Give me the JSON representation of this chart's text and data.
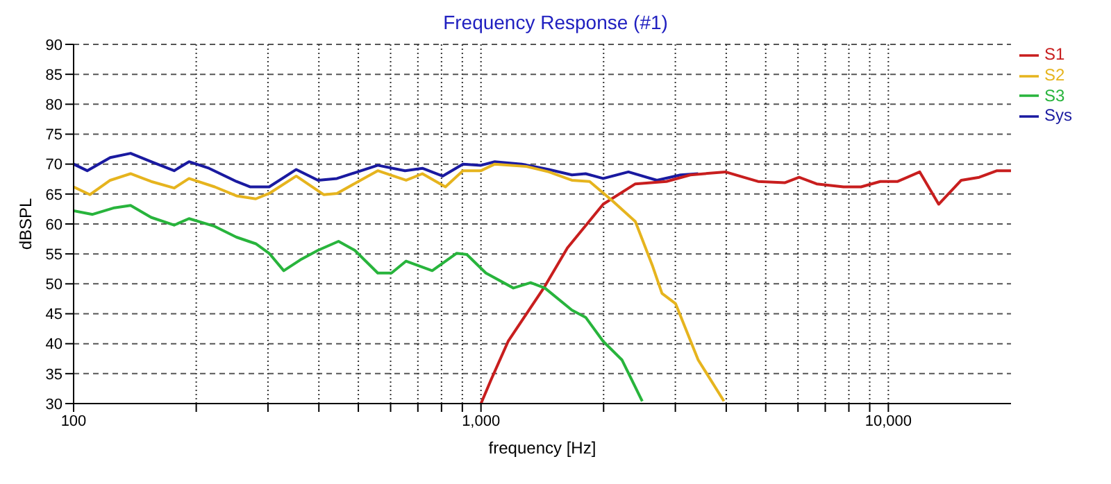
{
  "chart_data": {
    "type": "line",
    "title": "Frequency Response (#1)",
    "xlabel": "frequency [Hz]",
    "ylabel": "dBSPL",
    "log": "x",
    "grid": true,
    "legend": "top right",
    "marker": "none",
    "line_style": "solid",
    "xlim": [
      100,
      20000
    ],
    "ylim": [
      30,
      90
    ],
    "xticks": [
      100,
      {
        "value": 200,
        "label": null
      },
      {
        "value": 300,
        "label": null
      },
      {
        "value": 400,
        "label": null
      },
      {
        "value": 500,
        "label": null
      },
      {
        "value": 600,
        "label": null
      },
      {
        "value": 700,
        "label": null
      },
      {
        "value": 800,
        "label": null
      },
      {
        "value": 900,
        "label": null
      },
      {
        "value": 1000,
        "label": "1,000"
      },
      {
        "value": 2000,
        "label": null
      },
      {
        "value": 3000,
        "label": null
      },
      {
        "value": 4000,
        "label": null
      },
      {
        "value": 5000,
        "label": null
      },
      {
        "value": 6000,
        "label": null
      },
      {
        "value": 7000,
        "label": null
      },
      {
        "value": 8000,
        "label": null
      },
      {
        "value": 9000,
        "label": null
      },
      {
        "value": 10000,
        "label": "10,000"
      }
    ],
    "yticks": [
      30,
      35,
      40,
      45,
      50,
      55,
      60,
      65,
      70,
      75,
      80,
      85,
      90
    ],
    "series": [
      {
        "name": "Sys",
        "color": "#1a1aa0",
        "x": [
          100,
          108,
          123,
          138,
          155,
          176.5,
          192,
          215,
          251,
          271,
          302,
          352,
          398,
          443,
          558,
          651,
          718,
          805,
          903,
          1000,
          1081,
          1259,
          1468,
          1672,
          1807,
          1995,
          2301,
          2704,
          3090,
          3413
        ],
        "values": [
          70.0,
          68.9,
          71.1,
          71.8,
          70.4,
          68.9,
          70.4,
          69.3,
          67.1,
          66.2,
          66.2,
          69.1,
          67.3,
          67.6,
          69.8,
          68.9,
          69.3,
          68.0,
          70.0,
          69.8,
          70.4,
          70.0,
          69.1,
          68.2,
          68.4,
          67.6,
          68.7,
          67.3,
          68.2,
          68.4
        ]
      },
      {
        "name": "S1",
        "color": "#c81e1e",
        "x": [
          1000,
          1059,
          1166,
          1435,
          1630,
          1995,
          2393,
          2852,
          3266,
          3981,
          4786,
          5578,
          6039,
          6668,
          7762,
          8570,
          9550,
          10540,
          11940,
          13290,
          15100,
          16710,
          18480,
          20000
        ],
        "values": [
          30,
          34,
          40.4,
          49.6,
          56.0,
          63.3,
          66.7,
          67.1,
          68.2,
          68.7,
          67.1,
          66.9,
          67.8,
          66.7,
          66.2,
          66.2,
          67.1,
          67.1,
          68.7,
          63.3,
          67.3,
          67.8,
          68.9,
          68.9
        ]
      },
      {
        "name": "S2",
        "color": "#e6b41e",
        "x": [
          100,
          109.7,
          123,
          138,
          155,
          176.5,
          192,
          222,
          251,
          280,
          302,
          352,
          411,
          443,
          558,
          655,
          718,
          818,
          903,
          1000,
          1081,
          1294,
          1468,
          1672,
          1848,
          2108,
          2393,
          2640,
          2782,
          3003,
          3413,
          3948
        ],
        "values": [
          66.2,
          64.9,
          67.3,
          68.4,
          67.1,
          66.0,
          67.6,
          66.2,
          64.7,
          64.2,
          65.1,
          68.0,
          64.9,
          65.1,
          68.9,
          67.3,
          68.4,
          66.2,
          68.9,
          68.9,
          70.0,
          69.6,
          68.7,
          67.3,
          67.1,
          63.8,
          60.4,
          52.9,
          48.4,
          46.7,
          37.3,
          30.4
        ]
      },
      {
        "name": "S3",
        "color": "#28b43c",
        "x": [
          100,
          111.3,
          125.9,
          138,
          155,
          176.5,
          192,
          222,
          251,
          280,
          302,
          328,
          360,
          398,
          447,
          490,
          558,
          603,
          655,
          759,
          871,
          923,
          1028,
          1201,
          1324,
          1435,
          1672,
          1807,
          1995,
          2218,
          2488
        ],
        "values": [
          62.2,
          61.6,
          62.7,
          63.1,
          61.1,
          59.8,
          60.9,
          59.6,
          57.8,
          56.7,
          55.1,
          52.2,
          54.0,
          55.6,
          57.1,
          55.6,
          51.8,
          51.8,
          53.8,
          52.2,
          55.1,
          54.9,
          51.8,
          49.3,
          50.2,
          49.3,
          45.6,
          44.4,
          40.4,
          37.3,
          30.4
        ]
      }
    ]
  }
}
